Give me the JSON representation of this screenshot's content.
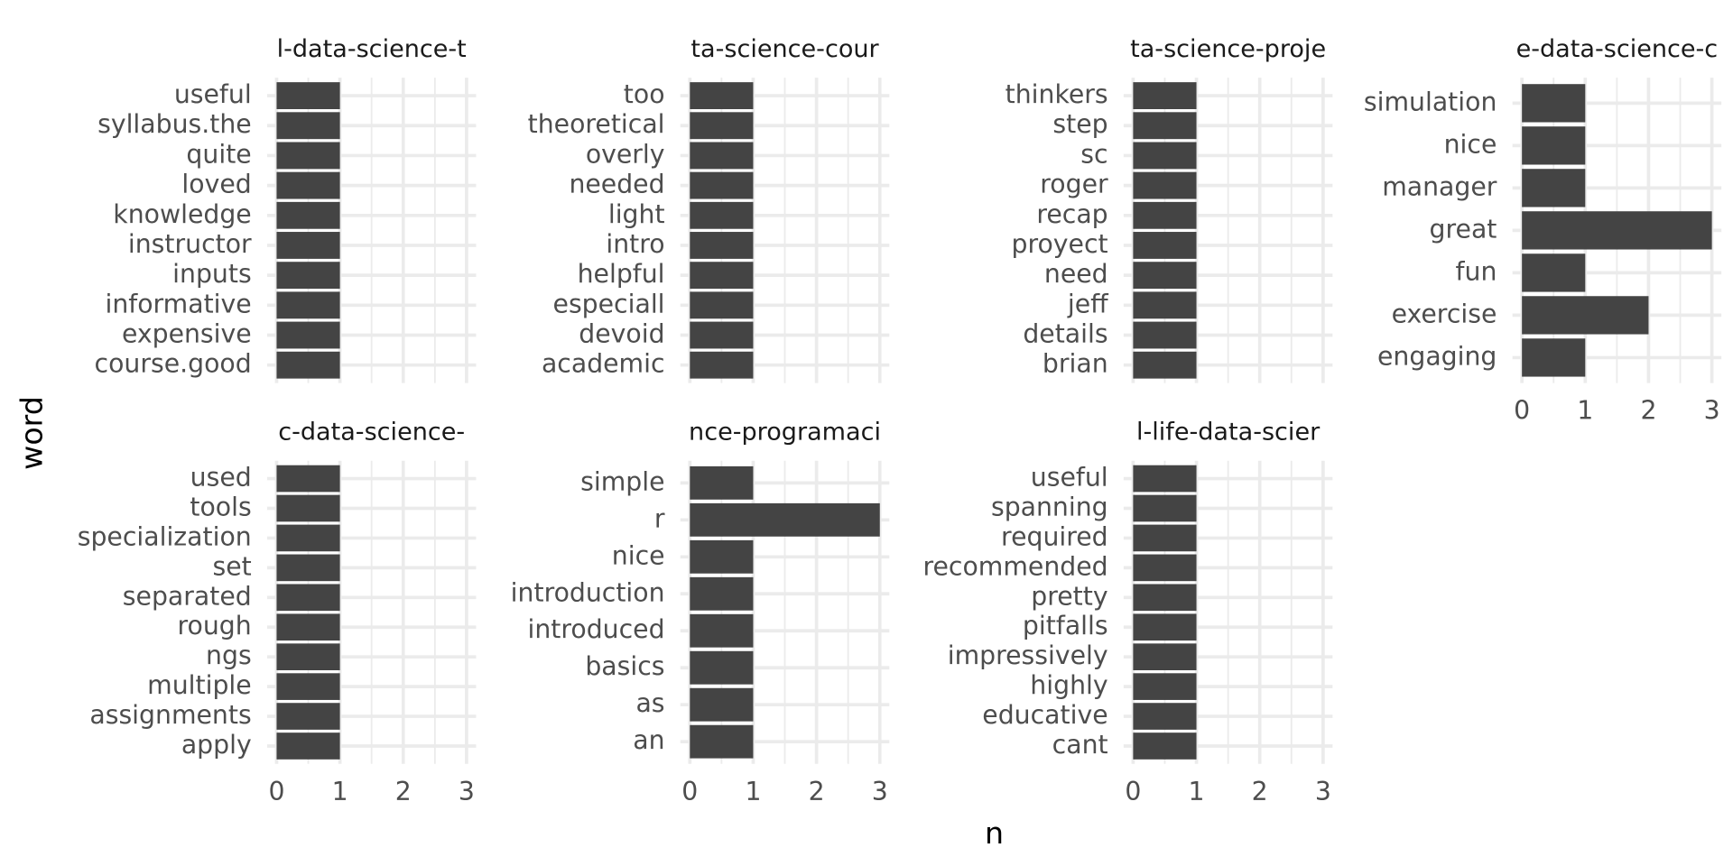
{
  "axis_labels": {
    "x": "n",
    "y": "word"
  },
  "chart_data": [
    {
      "type": "barh",
      "title": "l-data-science-t",
      "categories": [
        "useful",
        "syllabus.the",
        "quite",
        "loved",
        "knowledge",
        "instructor",
        "inputs",
        "informative",
        "expensive",
        "course.good"
      ],
      "values": [
        1,
        1,
        1,
        1,
        1,
        1,
        1,
        1,
        1,
        1
      ],
      "color": "#444444",
      "xlim": [
        -0.15,
        3.15
      ],
      "xticks": [
        0,
        1,
        2,
        3
      ],
      "grid": true
    },
    {
      "type": "barh",
      "title": "ta-science-cour",
      "categories": [
        "too",
        "theoretical",
        "overly",
        "needed",
        "light",
        "intro",
        "helpful",
        "especiall",
        "devoid",
        "academic"
      ],
      "values": [
        1,
        1,
        1,
        1,
        1,
        1,
        1,
        1,
        1,
        1
      ],
      "color": "#444444",
      "xlim": [
        -0.15,
        3.15
      ],
      "xticks": [
        0,
        1,
        2,
        3
      ],
      "grid": true
    },
    {
      "type": "barh",
      "title": "ta-science-proje",
      "categories": [
        "thinkers",
        "step",
        "sc",
        "roger",
        "recap",
        "proyect",
        "need",
        "jeff",
        "details",
        "brian"
      ],
      "values": [
        1,
        1,
        1,
        1,
        1,
        1,
        1,
        1,
        1,
        1
      ],
      "color": "#444444",
      "xlim": [
        -0.15,
        3.15
      ],
      "xticks": [
        0,
        1,
        2,
        3
      ],
      "grid": true
    },
    {
      "type": "barh",
      "title": "e-data-science-c",
      "categories": [
        "simulation",
        "nice",
        "manager",
        "great",
        "fun",
        "exercise",
        "engaging"
      ],
      "values": [
        1,
        1,
        1,
        3,
        1,
        2,
        1
      ],
      "color": "#444444",
      "xlim": [
        -0.15,
        3.15
      ],
      "xticks": [
        0,
        1,
        2,
        3
      ],
      "grid": true
    },
    {
      "type": "barh",
      "title": "c-data-science-",
      "categories": [
        "used",
        "tools",
        "specialization",
        "set",
        "separated",
        "rough",
        "ngs",
        "multiple",
        "assignments",
        "apply"
      ],
      "values": [
        1,
        1,
        1,
        1,
        1,
        1,
        1,
        1,
        1,
        1
      ],
      "color": "#444444",
      "xlim": [
        -0.15,
        3.15
      ],
      "xticks": [
        0,
        1,
        2,
        3
      ],
      "grid": true
    },
    {
      "type": "barh",
      "title": "nce-programaci",
      "categories": [
        "simple",
        "r",
        "nice",
        "introduction",
        "introduced",
        "basics",
        "as",
        "an"
      ],
      "values": [
        1,
        3,
        1,
        1,
        1,
        1,
        1,
        1
      ],
      "color": "#444444",
      "xlim": [
        -0.15,
        3.15
      ],
      "xticks": [
        0,
        1,
        2,
        3
      ],
      "grid": true
    },
    {
      "type": "barh",
      "title": "l-life-data-scier",
      "categories": [
        "useful",
        "spanning",
        "required",
        "recommended",
        "pretty",
        "pitfalls",
        "impressively",
        "highly",
        "educative",
        "cant"
      ],
      "values": [
        1,
        1,
        1,
        1,
        1,
        1,
        1,
        1,
        1,
        1
      ],
      "color": "#444444",
      "xlim": [
        -0.15,
        3.15
      ],
      "xticks": [
        0,
        1,
        2,
        3
      ],
      "grid": true
    }
  ]
}
